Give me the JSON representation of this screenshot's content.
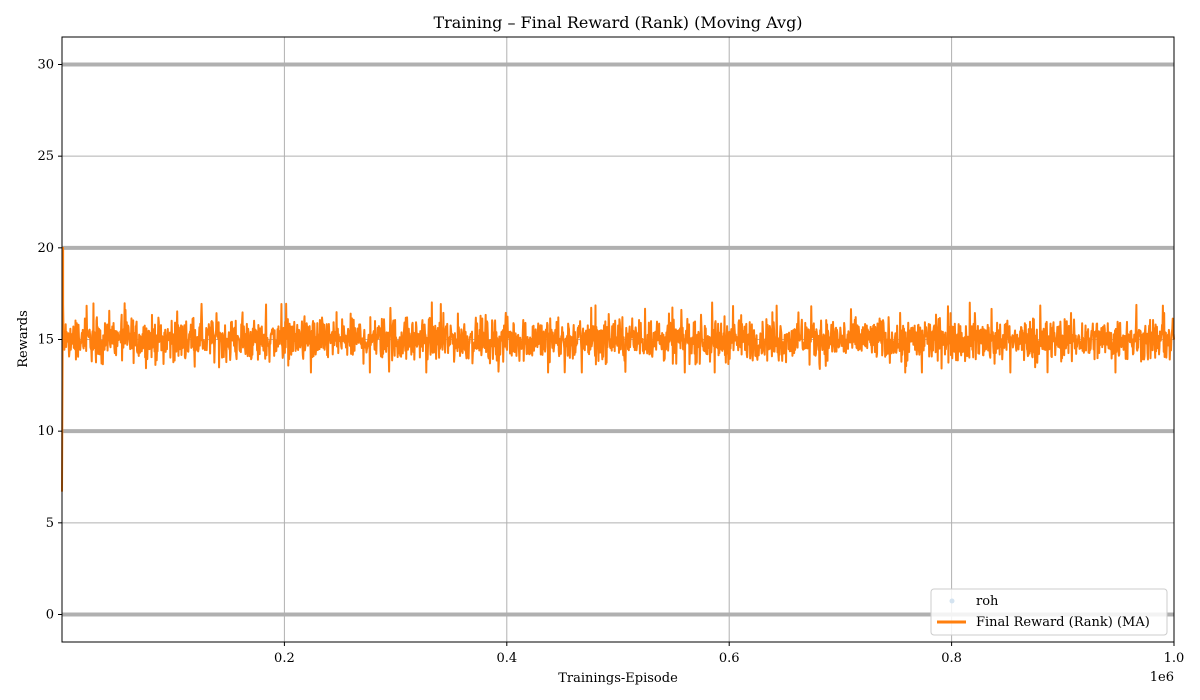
{
  "chart_data": {
    "type": "line",
    "title": "Training – Final Reward (Rank) (Moving Avg)",
    "xlabel": "Trainings-Episode",
    "ylabel": "Rewards",
    "x_offset_label": "1e6",
    "xlim": [
      0,
      1.0
    ],
    "ylim": [
      -1.5,
      31.5
    ],
    "x_ticks": [
      0.2,
      0.4,
      0.6,
      0.8,
      1.0
    ],
    "x_tick_labels": [
      "0.2",
      "0.4",
      "0.6",
      "0.8",
      "1.0"
    ],
    "y_ticks": [
      0,
      5,
      10,
      15,
      20,
      25,
      30
    ],
    "y_tick_labels": [
      "0",
      "5",
      "10",
      "15",
      "20",
      "25",
      "30"
    ],
    "grid": true,
    "horizontal_reference_lines": [
      0,
      10,
      20,
      30
    ],
    "legend_position": "lower-right",
    "series": [
      {
        "name": "roh",
        "kind": "scatter",
        "color": "#d4e3f0",
        "note_values": []
      },
      {
        "name": "Final Reward (Rank) (MA)",
        "kind": "line",
        "color": "#ff7f0e",
        "start": {
          "x": 0.0,
          "y": 6.7
        },
        "initial_peak": {
          "x": 0.001,
          "y": 20.0
        },
        "mean": 15.0,
        "band_low": 13.2,
        "band_high": 17.1,
        "x_end": 1.0
      }
    ],
    "colors": {
      "grid": "#b0b0b0",
      "reference_line": "#b0b0b0",
      "line": "#ff7f0e",
      "raw_points": "#d4e3f0"
    }
  }
}
